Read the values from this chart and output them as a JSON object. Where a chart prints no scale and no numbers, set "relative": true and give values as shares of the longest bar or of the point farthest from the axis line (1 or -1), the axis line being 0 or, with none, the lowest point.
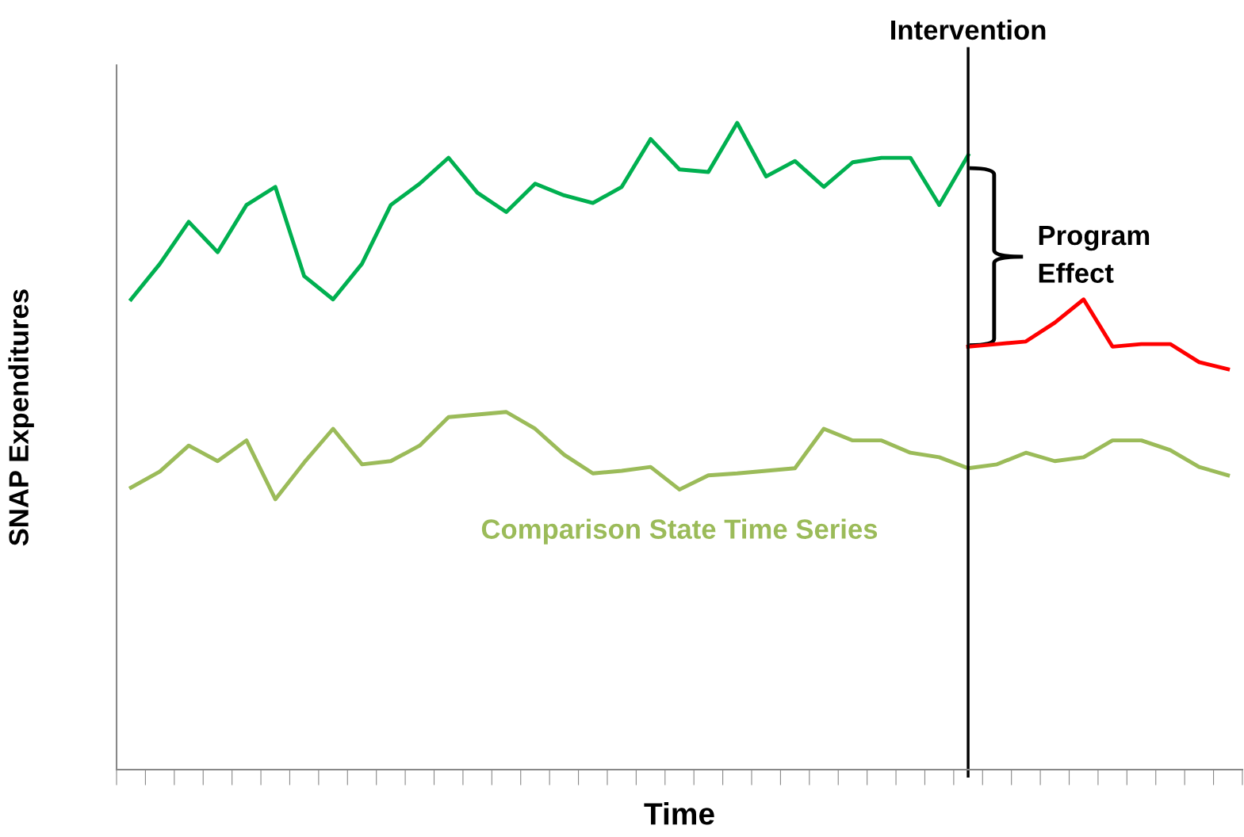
{
  "chart_data": {
    "type": "line",
    "relative": true,
    "xlabel": "Time",
    "ylabel": "SNAP Expenditures",
    "categories": [
      null,
      null,
      null,
      null,
      null,
      null,
      null,
      null,
      null,
      null,
      null,
      null,
      null,
      null,
      null,
      null,
      null,
      null,
      null,
      null,
      null,
      null,
      null,
      null,
      null,
      null,
      null,
      null,
      null,
      null,
      null,
      null,
      null,
      null,
      null,
      null,
      null,
      null,
      null
    ],
    "series": [
      {
        "color": "#00b050",
        "values": [
          0.727,
          0.782,
          0.847,
          0.8,
          0.873,
          0.901,
          0.763,
          0.727,
          0.782,
          0.873,
          0.906,
          0.946,
          0.892,
          0.862,
          0.906,
          0.888,
          0.876,
          0.901,
          0.975,
          0.928,
          0.924,
          1.0,
          0.917,
          0.941,
          0.901,
          0.939,
          0.946,
          0.946,
          0.873,
          0.95,
          null,
          null,
          null,
          null,
          null,
          null,
          null,
          null,
          null
        ]
      },
      {
        "color": "#ff0000",
        "values": [
          null,
          null,
          null,
          null,
          null,
          null,
          null,
          null,
          null,
          null,
          null,
          null,
          null,
          null,
          null,
          null,
          null,
          null,
          null,
          null,
          null,
          null,
          null,
          null,
          null,
          null,
          null,
          null,
          null,
          0.654,
          0.658,
          0.662,
          0.691,
          0.727,
          0.654,
          0.658,
          0.658,
          0.63,
          0.619
        ]
      },
      {
        "name": "Comparison State Time Series",
        "color": "#9bbb59",
        "values": [
          0.436,
          0.461,
          0.501,
          0.477,
          0.509,
          0.418,
          0.475,
          0.527,
          0.472,
          0.477,
          0.501,
          0.545,
          0.549,
          0.553,
          0.527,
          0.487,
          0.458,
          0.462,
          0.468,
          0.433,
          0.455,
          0.458,
          0.462,
          0.466,
          0.527,
          0.509,
          0.509,
          0.49,
          0.483,
          0.466,
          0.472,
          0.49,
          0.477,
          0.483,
          0.509,
          0.509,
          0.494,
          0.468,
          0.455
        ]
      }
    ],
    "annotations": [
      "Intervention",
      "Program\nEffect"
    ],
    "grid": false,
    "legend": false,
    "marker": "none",
    "line_style": "solid"
  }
}
